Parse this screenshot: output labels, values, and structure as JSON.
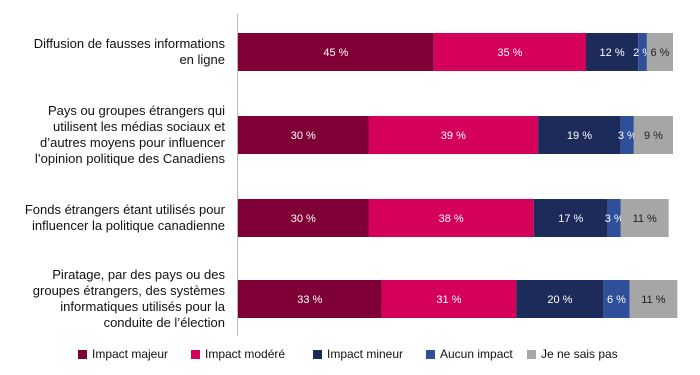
{
  "chart_data": {
    "type": "stacked-bar",
    "orientation": "horizontal",
    "categories": [
      "Diffusion de fausses informations en ligne",
      "Pays ou groupes étrangers qui utilisent les médias sociaux et d’autres moyens pour influencer l’opinion politique des Canadiens",
      "Fonds étrangers étant utilisés pour influencer la politique canadienne",
      "Piratage, par des pays ou des groupes étrangers, des systèmes informatiques utilisés pour la conduite de l’élection"
    ],
    "series": [
      {
        "name": "Impact majeur",
        "color": "#7f0037",
        "values": [
          45,
          30,
          30,
          33
        ],
        "value_labels": [
          "45 %",
          "30 %",
          "30 %",
          "33 %"
        ]
      },
      {
        "name": "Impact modéré",
        "color": "#d4005a",
        "values": [
          35,
          39,
          38,
          31
        ],
        "value_labels": [
          "35 %",
          "39 %",
          "38 %",
          "31 %"
        ]
      },
      {
        "name": "Impact mineur",
        "color": "#1c2b5a",
        "values": [
          12,
          19,
          17,
          20
        ],
        "value_labels": [
          "12 %",
          "19 %",
          "17 %",
          "20 %"
        ]
      },
      {
        "name": "Aucun impact",
        "color": "#2f4f9b",
        "values": [
          2,
          3,
          3,
          6
        ],
        "value_labels": [
          "2 %",
          "3 %",
          "3 %",
          "6 %"
        ]
      },
      {
        "name": "Je ne sais pas",
        "color": "#a6a6a6",
        "values": [
          6,
          9,
          11,
          11
        ],
        "value_labels": [
          "6 %",
          "9 %",
          "11 %",
          "11 %"
        ]
      }
    ],
    "xlim": [
      0,
      100
    ],
    "legend": "bottom"
  }
}
